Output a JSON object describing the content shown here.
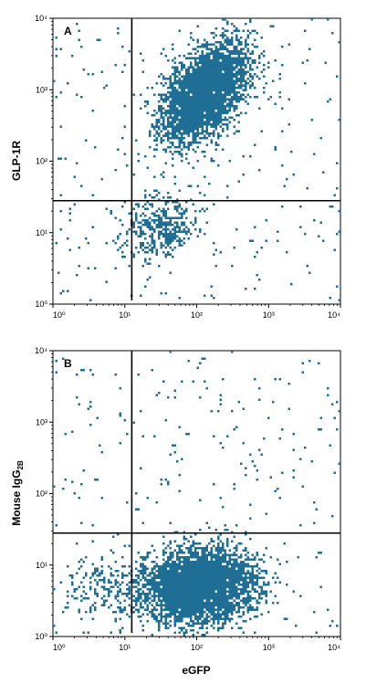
{
  "chart_data": [
    {
      "type": "scatter",
      "subtype": "flow-cytometry-density-plot",
      "panel_label": "A",
      "xlabel": "",
      "ylabel": "GLP-1R",
      "xscale": "log",
      "yscale": "log",
      "xlim": [
        1,
        10000
      ],
      "ylim": [
        1,
        10000
      ],
      "x_tick_labels": [
        "10⁰",
        "10¹",
        "10²",
        "10³",
        "10⁴"
      ],
      "y_tick_labels": [
        "10⁰",
        "10¹",
        "10²",
        "10³",
        "10⁴"
      ],
      "quadrant_gate": {
        "x": 12.5,
        "y": 28
      },
      "populations": [
        {
          "center_x": 130,
          "center_y": 900,
          "spread_log_x": 0.3,
          "spread_log_y": 0.3,
          "count": 3400,
          "tilt": 0.55
        },
        {
          "center_x": 35,
          "center_y": 12,
          "spread_log_x": 0.28,
          "spread_log_y": 0.22,
          "count": 420,
          "tilt": 0.2
        }
      ],
      "color": "#1f6e96"
    },
    {
      "type": "scatter",
      "subtype": "flow-cytometry-density-plot",
      "panel_label": "B",
      "xlabel": "eGFP",
      "ylabel": "Mouse IgG",
      "ylabel_subscript": "2B",
      "xscale": "log",
      "yscale": "log",
      "xlim": [
        1,
        10000
      ],
      "ylim": [
        1,
        10000
      ],
      "x_tick_labels": [
        "10⁰",
        "10¹",
        "10²",
        "10³",
        "10⁴"
      ],
      "y_tick_labels": [
        "10⁰",
        "10¹",
        "10²",
        "10³",
        "10⁴"
      ],
      "quadrant_gate": {
        "x": 12.5,
        "y": 28
      },
      "populations": [
        {
          "center_x": 110,
          "center_y": 5,
          "spread_log_x": 0.38,
          "spread_log_y": 0.25,
          "count": 4200,
          "tilt": 0.1
        },
        {
          "center_x": 6,
          "center_y": 5,
          "spread_log_x": 0.35,
          "spread_log_y": 0.22,
          "count": 220,
          "tilt": 0.0
        }
      ],
      "color": "#1f6e96"
    }
  ]
}
